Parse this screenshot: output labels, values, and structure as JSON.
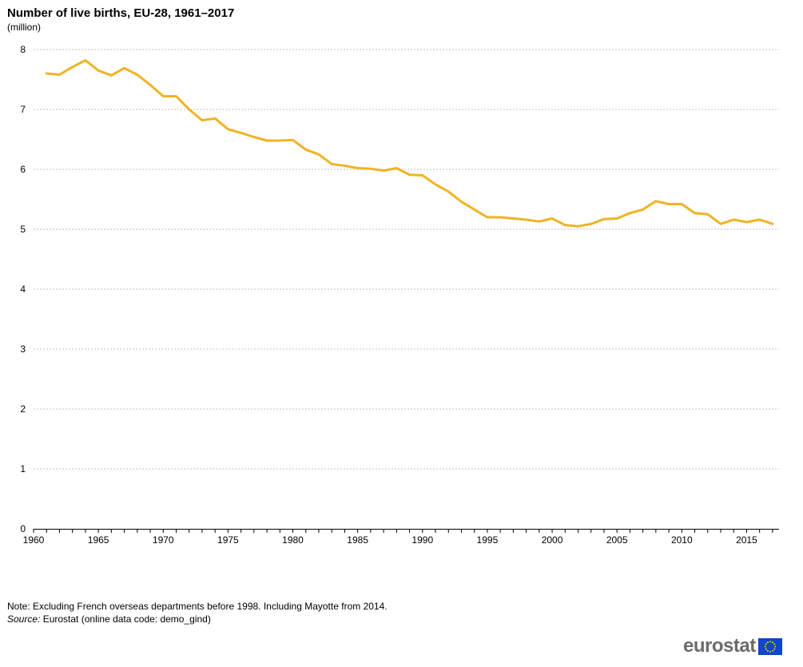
{
  "header": {
    "title": "Number of live births, EU-28, 1961–2017",
    "subtitle": "(million)"
  },
  "footer": {
    "note": "Note: Excluding French overseas departments before 1998. Including Mayotte from 2014.",
    "source_label": "Source:",
    "source_text": "Eurostat (online data code: demo_gind)"
  },
  "logo": {
    "text": "eurostat",
    "flag_icon": "eu-flag-icon"
  },
  "colors": {
    "line": "#F0B323",
    "grid": "#bfbfbf",
    "flag_blue": "#0e47cb",
    "flag_stars": "#ffcc00"
  },
  "chart_data": {
    "type": "line",
    "title": "Number of live births, EU-28, 1961–2017",
    "subtitle": "(million)",
    "xlabel": "",
    "ylabel": "",
    "xlim": [
      1960,
      2017.5
    ],
    "ylim": [
      0,
      8
    ],
    "x_ticks": [
      "1960",
      "1965",
      "1970",
      "1975",
      "1980",
      "1985",
      "1990",
      "1995",
      "2000",
      "2005",
      "2010",
      "2015"
    ],
    "y_ticks": [
      "0",
      "1",
      "2",
      "3",
      "4",
      "5",
      "6",
      "7",
      "8"
    ],
    "grid": "horizontal dashed",
    "legend": "none",
    "series": [
      {
        "x": [
          1961,
          1962,
          1963,
          1964,
          1965,
          1966,
          1967,
          1968,
          1969,
          1970,
          1971,
          1972,
          1973,
          1974,
          1975,
          1976,
          1977,
          1978,
          1979,
          1980,
          1981,
          1982,
          1983,
          1984,
          1985,
          1986,
          1987,
          1988,
          1989,
          1990,
          1991,
          1992,
          1993,
          1994,
          1995,
          1996,
          1997,
          1998,
          1999,
          2000,
          2001,
          2002,
          2003,
          2004,
          2005,
          2006,
          2007,
          2008,
          2009,
          2010,
          2011,
          2012,
          2013,
          2014,
          2015,
          2016,
          2017
        ],
        "values": [
          7.6,
          7.58,
          7.71,
          7.82,
          7.65,
          7.57,
          7.69,
          7.58,
          7.41,
          7.22,
          7.22,
          7.0,
          6.82,
          6.85,
          6.67,
          6.61,
          6.54,
          6.48,
          6.48,
          6.49,
          6.33,
          6.25,
          6.09,
          6.06,
          6.02,
          6.01,
          5.98,
          6.02,
          5.91,
          5.9,
          5.75,
          5.63,
          5.46,
          5.33,
          5.2,
          5.2,
          5.18,
          5.16,
          5.13,
          5.18,
          5.07,
          5.05,
          5.09,
          5.17,
          5.18,
          5.27,
          5.33,
          5.47,
          5.42,
          5.42,
          5.27,
          5.25,
          5.09,
          5.16,
          5.12,
          5.16,
          5.09
        ]
      }
    ]
  }
}
